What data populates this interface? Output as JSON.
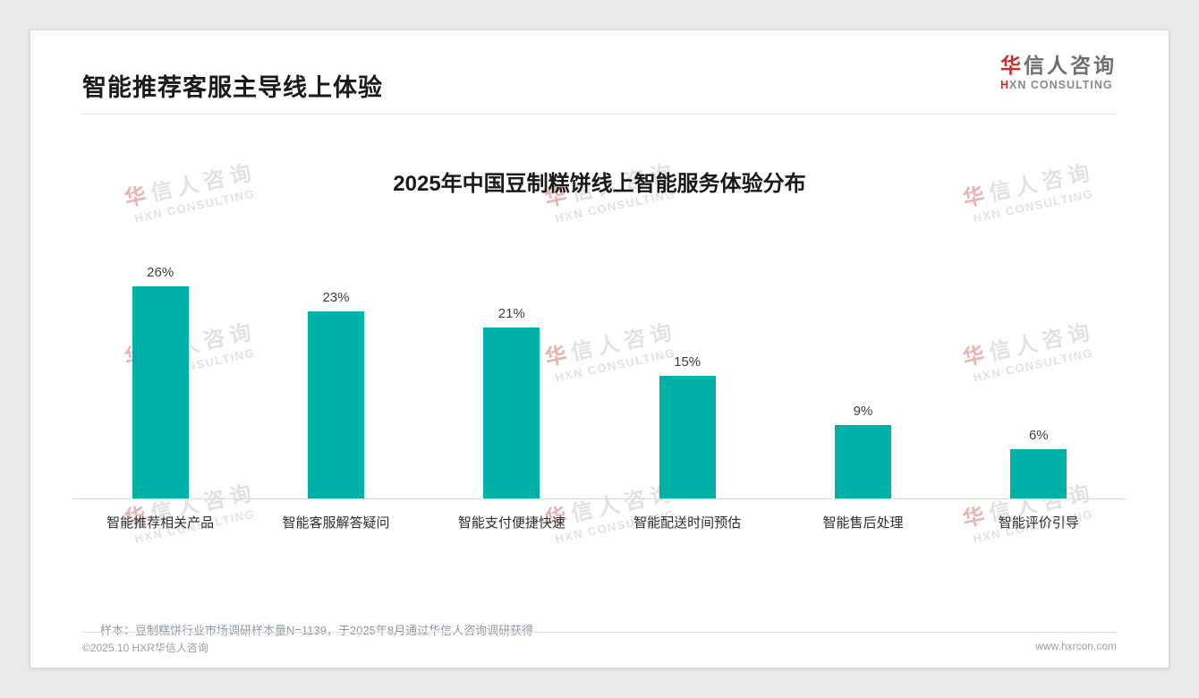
{
  "page": {
    "header": {
      "title": "智能推荐客服主导线上体验",
      "logo": {
        "cn_accent": "华",
        "cn_rest": "信人咨询",
        "en_accent": "H",
        "en_rest": "XN CONSULTING"
      }
    },
    "footnote": "样本：豆制糕饼行业市场调研样本量N=1139，于2025年8月通过华信人咨询调研获得",
    "footer": {
      "left": "©2025.10 HXR华信人咨询",
      "right": "www.hxrcon.com"
    },
    "watermark": {
      "cn": "华信人咨询",
      "en": "HXN CONSULTING"
    }
  },
  "chart_data": {
    "type": "bar",
    "title": "2025年中国豆制糕饼线上智能服务体验分布",
    "categories": [
      "智能推荐相关产品",
      "智能客服解答疑问",
      "智能支付便捷快速",
      "智能配送时间预估",
      "智能售后处理",
      "智能评价引导"
    ],
    "values": [
      26,
      23,
      21,
      15,
      9,
      6
    ],
    "value_labels": [
      "26%",
      "23%",
      "21%",
      "15%",
      "9%",
      "6%"
    ],
    "unit": "%",
    "bar_color": "#00b1a8",
    "ylim": [
      0,
      28
    ],
    "grid": false,
    "legend": false,
    "value_labels_position": "above-bars"
  },
  "colors": {
    "accent_red": "#c9302a",
    "bar_teal": "#00b1a8",
    "title_text": "#1a1a1a",
    "footnote_text": "#8d99a6",
    "footer_text": "#9aa0a6"
  }
}
